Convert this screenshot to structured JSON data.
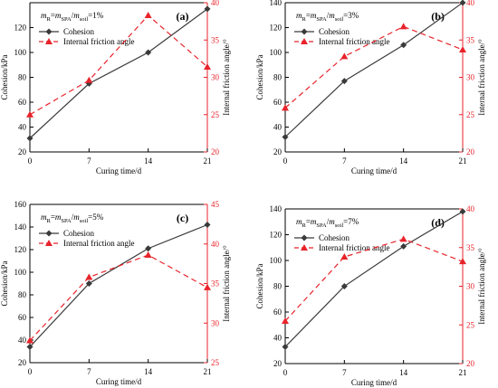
{
  "figure": {
    "colors": {
      "cohesion": "#3a3a3a",
      "friction": "#e8232b",
      "axis_black": "#000000"
    },
    "icons": {
      "cohesion_marker": "diamond-marker-icon",
      "friction_marker": "triangle-marker-icon"
    }
  },
  "chart_data": [
    {
      "type": "line",
      "panel_label": "(a)",
      "ratio_label": "=1%",
      "x": [
        0,
        7,
        14,
        21
      ],
      "xticks": [
        0,
        7,
        14,
        21
      ],
      "xlim": [
        0,
        21
      ],
      "xlabel": "Curing time/d",
      "ylabel": "Cohesion/kPa",
      "ylim": [
        20,
        140
      ],
      "yticks": [
        20,
        40,
        60,
        80,
        100,
        120
      ],
      "y2label": "Internal friction angle/°",
      "y2lim": [
        20,
        40
      ],
      "y2ticks": [
        20,
        25,
        30,
        35,
        40
      ],
      "legend": "top-left",
      "grid": false,
      "series": [
        {
          "name": "Cohesion",
          "axis": "left",
          "values": [
            31,
            75,
            100,
            135
          ]
        },
        {
          "name": "Internal friction angle",
          "axis": "right",
          "values": [
            25,
            29.6,
            38.3,
            31.4
          ]
        }
      ]
    },
    {
      "type": "line",
      "panel_label": "(b)",
      "ratio_label": "=3%",
      "x": [
        0,
        7,
        14,
        21
      ],
      "xticks": [
        0,
        7,
        14,
        21
      ],
      "xlim": [
        0,
        21
      ],
      "xlabel": "Curing time/d",
      "ylabel": "Cohesion/kPa",
      "ylim": [
        20,
        140
      ],
      "yticks": [
        20,
        40,
        60,
        80,
        100,
        120,
        140
      ],
      "y2label": "Internal friction angle/°",
      "y2lim": [
        20,
        40
      ],
      "y2ticks": [
        20,
        25,
        30,
        35,
        40
      ],
      "legend": "top-left",
      "grid": false,
      "series": [
        {
          "name": "Cohesion",
          "axis": "left",
          "values": [
            32,
            77,
            106,
            140
          ]
        },
        {
          "name": "Internal friction angle",
          "axis": "right",
          "values": [
            25.9,
            32.8,
            36.8,
            33.7
          ]
        }
      ]
    },
    {
      "type": "line",
      "panel_label": "(c)",
      "ratio_label": "=5%",
      "x": [
        0,
        7,
        14,
        21
      ],
      "xticks": [
        0,
        7,
        14,
        21
      ],
      "xlim": [
        0,
        21
      ],
      "xlabel": "Curing time/d",
      "ylabel": "Cohesion/kPa",
      "ylim": [
        20,
        160
      ],
      "yticks": [
        20,
        40,
        60,
        80,
        100,
        120,
        140,
        160
      ],
      "y2label": "Internal friction angle/°",
      "y2lim": [
        25,
        45
      ],
      "y2ticks": [
        25,
        30,
        35,
        40,
        45
      ],
      "legend": "top-left",
      "grid": false,
      "series": [
        {
          "name": "Cohesion",
          "axis": "left",
          "values": [
            34,
            90,
            121,
            142
          ]
        },
        {
          "name": "Internal friction angle",
          "axis": "right",
          "values": [
            27.8,
            35.8,
            38.6,
            34.5
          ]
        }
      ]
    },
    {
      "type": "line",
      "panel_label": "(d)",
      "ratio_label": "=7%",
      "x": [
        0,
        7,
        14,
        21
      ],
      "xticks": [
        0,
        7,
        14,
        21
      ],
      "xlim": [
        0,
        21
      ],
      "xlabel": "Curing time/d",
      "ylabel": "Cohesion/kPa",
      "ylim": [
        20,
        140
      ],
      "yticks": [
        20,
        40,
        60,
        80,
        100,
        120,
        140
      ],
      "y2label": "Internal friction angle/°",
      "y2lim": [
        20,
        40
      ],
      "y2ticks": [
        20,
        25,
        30,
        35,
        40
      ],
      "legend": "top-left",
      "grid": false,
      "series": [
        {
          "name": "Cohesion",
          "axis": "left",
          "values": [
            33,
            80,
            111,
            138
          ]
        },
        {
          "name": "Internal friction angle",
          "axis": "right",
          "values": [
            25.5,
            33.8,
            36.1,
            33.2
          ]
        }
      ]
    }
  ]
}
